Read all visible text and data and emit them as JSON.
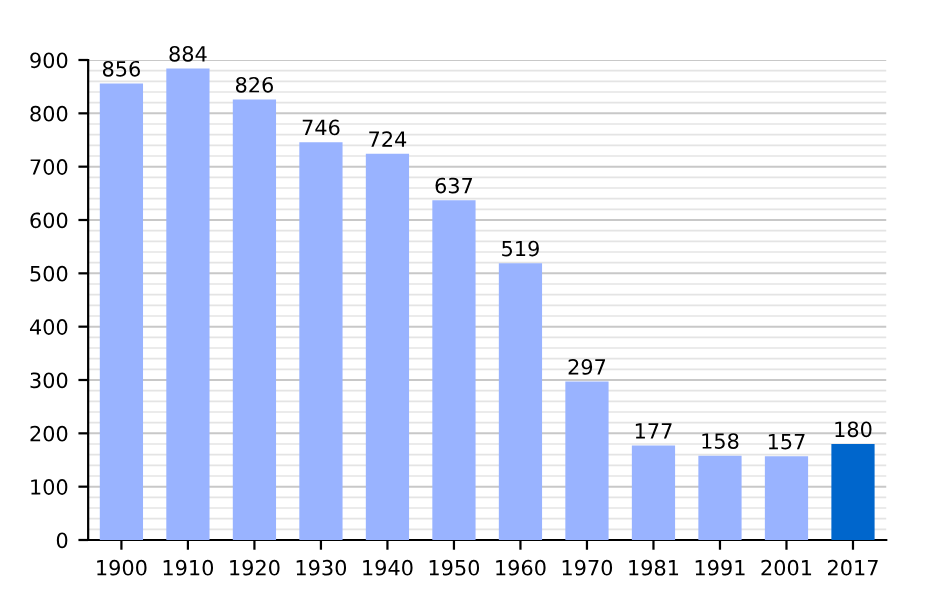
{
  "chart_data": {
    "type": "bar",
    "categories": [
      "1900",
      "1910",
      "1920",
      "1930",
      "1940",
      "1950",
      "1960",
      "1970",
      "1981",
      "1991",
      "2001",
      "2017"
    ],
    "values": [
      856,
      884,
      826,
      746,
      724,
      637,
      519,
      297,
      177,
      158,
      157,
      180
    ],
    "colors": [
      "#99b3ff",
      "#99b3ff",
      "#99b3ff",
      "#99b3ff",
      "#99b3ff",
      "#99b3ff",
      "#99b3ff",
      "#99b3ff",
      "#99b3ff",
      "#99b3ff",
      "#99b3ff",
      "#0066cc"
    ],
    "ylim": [
      0,
      900
    ],
    "yticks": [
      0,
      100,
      200,
      300,
      400,
      500,
      600,
      700,
      800,
      900
    ],
    "grid": "y",
    "data_labels": true
  }
}
